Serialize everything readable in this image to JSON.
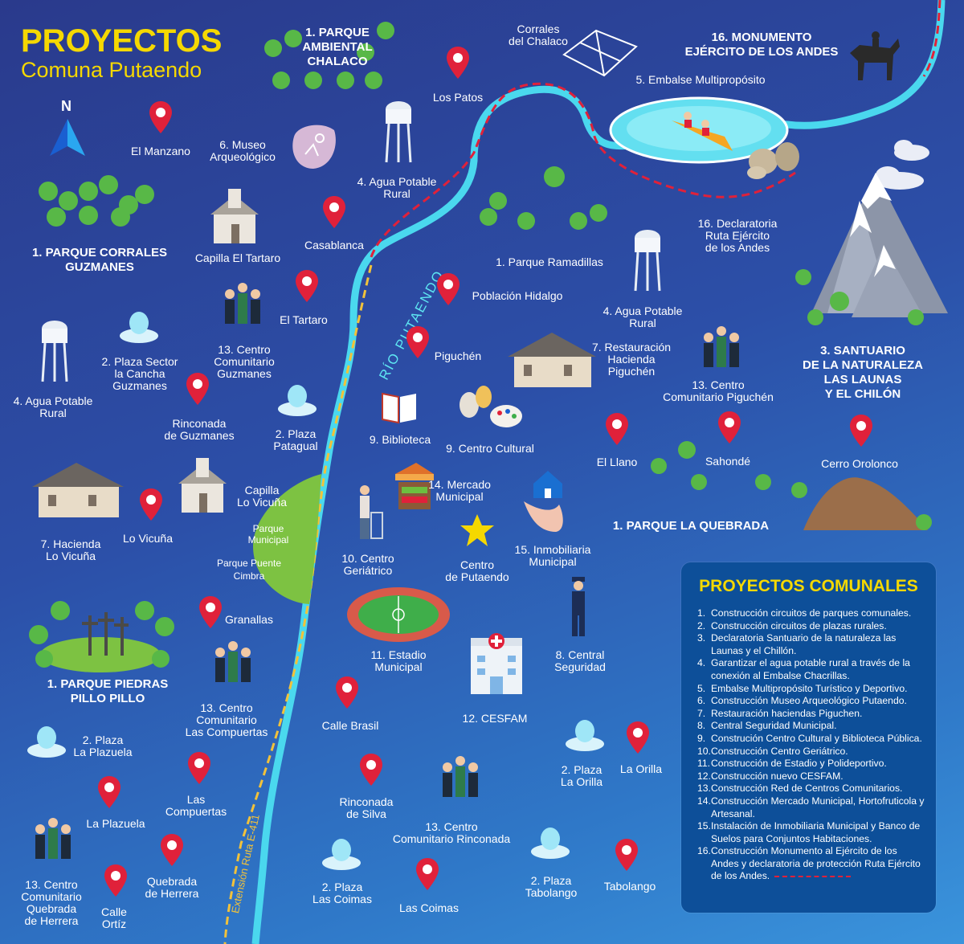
{
  "title": {
    "line1": "PROYECTOS",
    "line2": "Comuna Putaendo"
  },
  "north": "N",
  "river_label": "RÍO PUTAENDO",
  "route_label": "Extensión Ruta E-411",
  "labels": {
    "parque_ambiental": "1. PARQUE\nAMBIENTAL\nCHALACO",
    "corrales": "Corrales\ndel Chalaco",
    "monumento": "16. MONUMENTO\nEJÉRCITO DE LOS ANDES",
    "los_patos": "Los Patos",
    "embalse": "5. Embalse Multipropósito",
    "el_manzano": "El Manzano",
    "museo": "6. Museo\nArqueológico",
    "agua_rural_top": "4. Agua Potable\nRural",
    "declaratoria": "16. Declaratoria\nRuta Ejército\nde los Andes",
    "parque_corrales": "1. PARQUE CORRALES\nGUZMANES",
    "capilla_tartaro": "Capilla El Tartaro",
    "casablanca": "Casablanca",
    "parque_ramadillas": "1. Parque Ramadillas",
    "poblacion_hidalgo": "Población Hidalgo",
    "agua_rural_right": "4. Agua Potable\nRural",
    "santuario": "3. SANTUARIO\nDE LA NATURALEZA\nLAS LAUNAS\nY EL CHILÓN",
    "el_tartaro": "El Tartaro",
    "plaza_cancha": "2. Plaza Sector\nla Cancha\nGuzmanes",
    "centro_guzmanes": "13. Centro\nComunitario\nGuzmanes",
    "piguchen": "Piguchén",
    "restauracion": "7. Restauración\nHacienda\nPiguchén",
    "centro_piguchen": "13. Centro\nComunitario Piguchén",
    "agua_rural_left": "4. Agua Potable\nRural",
    "rinconada_guzmanes": "Rinconada\nde Guzmanes",
    "plaza_patagual": "2. Plaza\nPatagual",
    "biblioteca": "9. Biblioteca",
    "centro_cultural": "9. Centro Cultural",
    "el_llano": "El Llano",
    "sahonde": "Sahondé",
    "cerro_orolonco": "Cerro Orolonco",
    "hacienda_vicuna": "7. Hacienda\nLo Vicuña",
    "capilla_vicuna": "Capilla\nLo Vicuña",
    "lo_vicuna": "Lo Vicuña",
    "parque_municipal": "Parque\nMunicipal",
    "parque_puente": "Parque Puente\nCimbra",
    "mercado": "14. Mercado\nMunicipal",
    "parque_quebrada": "1. PARQUE LA QUEBRADA",
    "centro_geriatrico": "10. Centro\nGeriátrico",
    "centro_putaendo": "Centro\nde Putaendo",
    "inmobiliaria": "15. Inmobiliaria\nMunicipal",
    "granallas": "Granallas",
    "estadio": "11. Estadio\nMunicipal",
    "central_seguridad": "8. Central\nSeguridad",
    "parque_piedras": "1. PARQUE PIEDRAS\nPILLO PILLO",
    "centro_compuertas": "13. Centro\nComunitario\nLas Compuertas",
    "calle_brasil": "Calle Brasil",
    "cesfam": "12. CESFAM",
    "plaza_plazuela": "2. Plaza\nLa Plazuela",
    "plaza_orilla": "2. Plaza\nLa Orilla",
    "la_orilla": "La Orilla",
    "las_compuertas": "Las\nCompuertas",
    "rinconada_silva": "Rinconada\nde Silva",
    "la_plazuela": "La Plazuela",
    "centro_rinconada": "13. Centro\nComunitario Rinconada",
    "centro_quebrada": "13. Centro\nComunitario\nQuebrada\nde Herrera",
    "quebrada_herrera": "Quebrada\nde Herrera",
    "calle_ortiz": "Calle\nOrtíz",
    "plaza_coimas": "2. Plaza\nLas Coimas",
    "las_coimas": "Las Coimas",
    "plaza_tabolango": "2. Plaza\nTabolango",
    "tabolango": "Tabolango"
  },
  "legend": {
    "title": "PROYECTOS COMUNALES",
    "items": [
      {
        "num": "1.",
        "text": "Construcción circuitos de parques comunales."
      },
      {
        "num": "2.",
        "text": "Construcción circuitos de plazas rurales."
      },
      {
        "num": "3.",
        "text": "Declaratoria Santuario de la naturaleza las Launas y el Chillón."
      },
      {
        "num": "4.",
        "text": "Garantizar el agua potable rural a través de la conexión al Embalse Chacrillas."
      },
      {
        "num": "5.",
        "text": "Embalse Multipropósito Turístico y Deportivo."
      },
      {
        "num": "6.",
        "text": "Construcción Museo Arqueológico Putaendo."
      },
      {
        "num": "7.",
        "text": "Restauración haciendas Piguchen."
      },
      {
        "num": "8.",
        "text": "Central Seguridad Municipal."
      },
      {
        "num": "9.",
        "text": "Construción Centro Cultural y Biblioteca Pública."
      },
      {
        "num": "10.",
        "text": "Construcción Centro Geriátrico."
      },
      {
        "num": "11.",
        "text": "Construcción de Estadio y Polideportivo."
      },
      {
        "num": "12.",
        "text": "Construcción nuevo CESFAM."
      },
      {
        "num": "13.",
        "text": "Construcción Red de Centros Comunitarios."
      },
      {
        "num": "14.",
        "text": "Construcción Mercado Municipal, Hortofruticola y Artesanal."
      },
      {
        "num": "15.",
        "text": "Instalación de Inmobiliaria Municipal y Banco de Suelos para Conjuntos Habitaciones."
      },
      {
        "num": "16.",
        "text": "Construcción Monumento al Ejército de los Andes y declaratoria de protección Ruta Ejército de los Andes."
      }
    ]
  },
  "colors": {
    "title": "#f5d800",
    "river": "#5ee6f2",
    "pin": "#e0213a",
    "route": "#f2c23a",
    "legend_bg": "#0d4f99"
  }
}
